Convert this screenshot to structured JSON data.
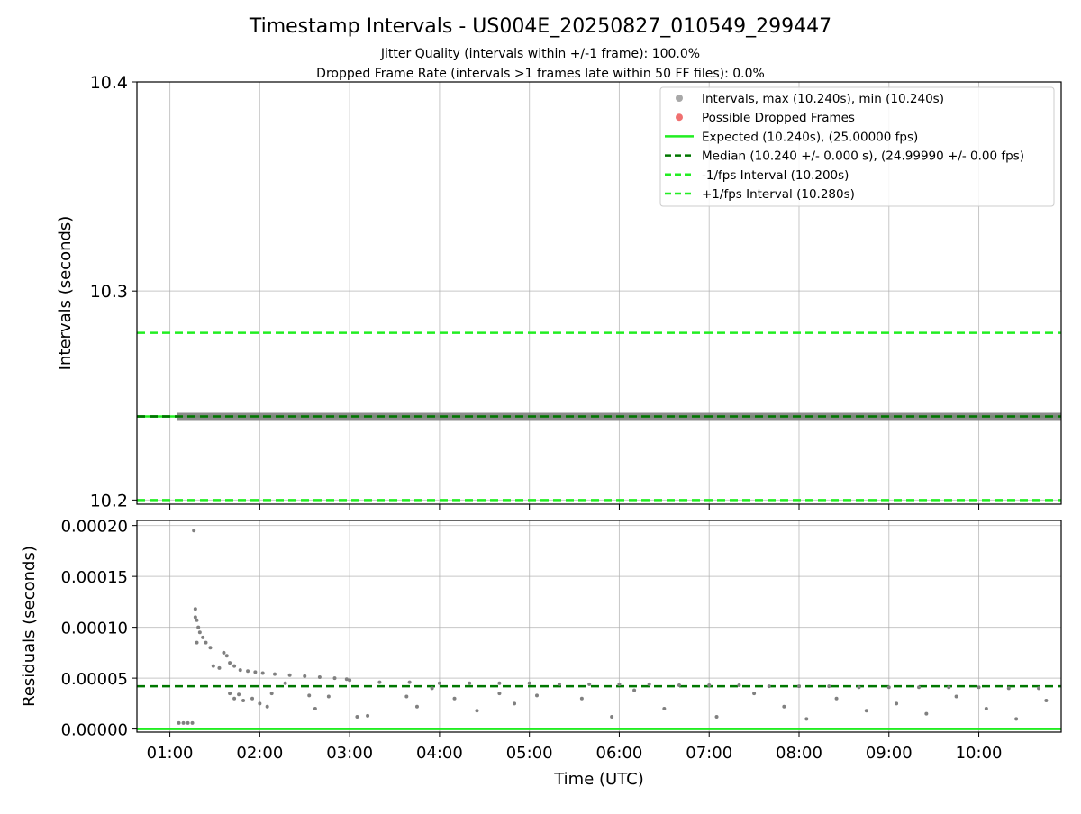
{
  "title": "Timestamp Intervals - US004E_20250827_010549_299447",
  "subtitle_1": "Jitter Quality (intervals within +/-1 frame): 100.0%",
  "subtitle_2": "Dropped Frame Rate (intervals >1 frames late within 50 FF files): 0.0%",
  "chart_data": [
    {
      "type": "scatter",
      "ylabel": "Intervals (seconds)",
      "xlim": [
        "00:38",
        "10:55"
      ],
      "ylim": [
        10.198,
        10.4
      ],
      "x_ticks": [
        "01:00",
        "02:00",
        "03:00",
        "04:00",
        "05:00",
        "06:00",
        "07:00",
        "08:00",
        "09:00",
        "10:00"
      ],
      "y_ticks": [
        10.2,
        10.3,
        10.4
      ],
      "y_tick_labels": [
        "10.2",
        "10.3",
        "10.4"
      ],
      "grid": true,
      "legend_position": "top-right",
      "legend": [
        {
          "label": "Intervals, max (10.240s), min (10.240s)",
          "kind": "dot",
          "color": "#a8a8a8"
        },
        {
          "label": "Possible Dropped Frames",
          "kind": "dot",
          "color": "#f07070"
        },
        {
          "label": "Expected (10.240s), (25.00000 fps)",
          "kind": "solid",
          "color": "#22ee22"
        },
        {
          "label": "Median (10.240 +/- 0.000 s), (24.99990 +/- 0.00 fps)",
          "kind": "dashed",
          "color": "#007700"
        },
        {
          "label": "-1/fps Interval (10.200s)",
          "kind": "dashed",
          "color": "#22ee22"
        },
        {
          "label": "+1/fps Interval (10.280s)",
          "kind": "dashed",
          "color": "#22ee22"
        }
      ],
      "series": [
        {
          "name": "Intervals",
          "x_range": [
            "01:05",
            "10:55"
          ],
          "y": 10.24,
          "color": "#808080"
        }
      ],
      "reference_lines": [
        {
          "y": 10.24,
          "style": "solid",
          "color": "#22ee22"
        },
        {
          "y": 10.24,
          "style": "dashed",
          "color": "#007700"
        },
        {
          "y": 10.2,
          "style": "dashed",
          "color": "#22ee22"
        },
        {
          "y": 10.28,
          "style": "dashed",
          "color": "#22ee22"
        }
      ]
    },
    {
      "type": "scatter",
      "xlabel": "Time (UTC)",
      "ylabel": "Residuals (seconds)",
      "xlim": [
        "00:38",
        "10:55"
      ],
      "ylim": [
        -3e-06,
        0.000205
      ],
      "x_ticks": [
        "01:00",
        "02:00",
        "03:00",
        "04:00",
        "05:00",
        "06:00",
        "07:00",
        "08:00",
        "09:00",
        "10:00"
      ],
      "y_ticks": [
        0,
        5e-05,
        0.0001,
        0.00015,
        0.0002
      ],
      "y_tick_labels": [
        "0.00000",
        "0.00005",
        "0.00010",
        "0.00015",
        "0.00020"
      ],
      "grid": true,
      "reference_lines": [
        {
          "y": 0,
          "style": "solid",
          "color": "#22ee22"
        },
        {
          "y": 4.2e-05,
          "style": "dashed",
          "color": "#007700"
        }
      ],
      "series": [
        {
          "name": "Residuals",
          "color": "#808080",
          "points": [
            [
              "01:06",
              6e-06
            ],
            [
              "01:09",
              6e-06
            ],
            [
              "01:12",
              6e-06
            ],
            [
              "01:15",
              6e-06
            ],
            [
              "01:16",
              0.000195
            ],
            [
              "01:17",
              0.000118
            ],
            [
              "01:17",
              0.00011
            ],
            [
              "01:18",
              0.000107
            ],
            [
              "01:19",
              0.0001
            ],
            [
              "01:20",
              9.5e-05
            ],
            [
              "01:22",
              9e-05
            ],
            [
              "01:24",
              8.5e-05
            ],
            [
              "01:27",
              8e-05
            ],
            [
              "01:18",
              8.5e-05
            ],
            [
              "01:29",
              6.2e-05
            ],
            [
              "01:33",
              6e-05
            ],
            [
              "01:36",
              7.5e-05
            ],
            [
              "01:38",
              7.2e-05
            ],
            [
              "01:40",
              6.5e-05
            ],
            [
              "01:43",
              6.2e-05
            ],
            [
              "01:40",
              3.5e-05
            ],
            [
              "01:43",
              3e-05
            ],
            [
              "01:46",
              3.4e-05
            ],
            [
              "01:49",
              2.8e-05
            ],
            [
              "01:47",
              5.8e-05
            ],
            [
              "01:52",
              5.7e-05
            ],
            [
              "01:57",
              5.6e-05
            ],
            [
              "02:02",
              5.5e-05
            ],
            [
              "01:55",
              3e-05
            ],
            [
              "02:00",
              2.5e-05
            ],
            [
              "02:05",
              2.2e-05
            ],
            [
              "02:08",
              3.5e-05
            ],
            [
              "02:10",
              5.4e-05
            ],
            [
              "02:20",
              5.3e-05
            ],
            [
              "02:30",
              5.2e-05
            ],
            [
              "02:40",
              5.1e-05
            ],
            [
              "02:17",
              4.5e-05
            ],
            [
              "02:33",
              3.3e-05
            ],
            [
              "02:37",
              2e-05
            ],
            [
              "02:46",
              3.2e-05
            ],
            [
              "02:50",
              5e-05
            ],
            [
              "02:58",
              4.9e-05
            ],
            [
              "03:05",
              1.2e-05
            ],
            [
              "03:12",
              1.3e-05
            ],
            [
              "03:00",
              4.8e-05
            ],
            [
              "03:20",
              4.6e-05
            ],
            [
              "03:40",
              4.6e-05
            ],
            [
              "04:00",
              4.5e-05
            ],
            [
              "03:38",
              3.2e-05
            ],
            [
              "03:45",
              2.2e-05
            ],
            [
              "03:55",
              4e-05
            ],
            [
              "04:10",
              3e-05
            ],
            [
              "04:20",
              4.5e-05
            ],
            [
              "04:40",
              4.5e-05
            ],
            [
              "05:00",
              4.5e-05
            ],
            [
              "05:20",
              4.4e-05
            ],
            [
              "04:25",
              1.8e-05
            ],
            [
              "04:40",
              3.5e-05
            ],
            [
              "04:50",
              2.5e-05
            ],
            [
              "05:05",
              3.3e-05
            ],
            [
              "05:40",
              4.4e-05
            ],
            [
              "06:00",
              4.4e-05
            ],
            [
              "06:20",
              4.4e-05
            ],
            [
              "06:40",
              4.3e-05
            ],
            [
              "05:35",
              3e-05
            ],
            [
              "05:55",
              1.2e-05
            ],
            [
              "06:10",
              3.8e-05
            ],
            [
              "06:30",
              2e-05
            ],
            [
              "07:00",
              4.3e-05
            ],
            [
              "07:20",
              4.3e-05
            ],
            [
              "07:40",
              4.2e-05
            ],
            [
              "08:00",
              4.2e-05
            ],
            [
              "07:05",
              1.2e-05
            ],
            [
              "07:30",
              3.5e-05
            ],
            [
              "07:50",
              2.2e-05
            ],
            [
              "08:05",
              1e-05
            ],
            [
              "08:20",
              4.2e-05
            ],
            [
              "08:40",
              4.1e-05
            ],
            [
              "09:00",
              4.1e-05
            ],
            [
              "09:20",
              4.1e-05
            ],
            [
              "08:25",
              3e-05
            ],
            [
              "08:45",
              1.8e-05
            ],
            [
              "09:05",
              2.5e-05
            ],
            [
              "09:25",
              1.5e-05
            ],
            [
              "09:40",
              4.1e-05
            ],
            [
              "10:00",
              4.1e-05
            ],
            [
              "10:20",
              4e-05
            ],
            [
              "10:40",
              4e-05
            ],
            [
              "09:45",
              3.2e-05
            ],
            [
              "10:05",
              2e-05
            ],
            [
              "10:25",
              1e-05
            ],
            [
              "10:45",
              2.8e-05
            ]
          ]
        }
      ]
    }
  ]
}
